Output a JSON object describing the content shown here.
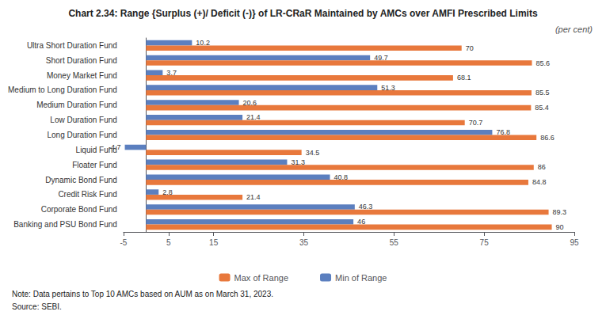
{
  "chart_data": {
    "type": "bar",
    "orientation": "horizontal",
    "title": "Chart 2.34: Range {Surplus (+)/ Deficit (-)} of LR-CRaR Maintained by AMCs over AMFI Prescribed Limits",
    "subtitle": "(per cent)",
    "categories": [
      "Banking and PSU Bond Fund",
      "Corporate Bond Fund",
      "Credit Risk Fund",
      "Dynamic Bond Fund",
      "Floater Fund",
      "Liquid Fund",
      "Long Duration Fund",
      "Low Duration Fund",
      "Medium Duration Fund",
      "Medium to Long Duration Fund",
      "Money Market Fund",
      "Short Duration Fund",
      "Ultra Short Duration Fund"
    ],
    "series": [
      {
        "name": "Max of Range",
        "color": "#E8783C",
        "values": [
          90.0,
          89.3,
          21.4,
          84.8,
          86.0,
          34.5,
          86.6,
          70.7,
          85.4,
          85.5,
          68.1,
          85.6,
          70.0
        ]
      },
      {
        "name": "Min of Range",
        "color": "#5B7FBF",
        "values": [
          46.0,
          46.3,
          2.8,
          40.8,
          31.3,
          -4.7,
          76.8,
          21.4,
          20.6,
          51.3,
          3.7,
          49.7,
          10.2
        ]
      }
    ],
    "xlim": [
      -5,
      95
    ],
    "xticks": [
      -5,
      5,
      15,
      35,
      55,
      75,
      95
    ],
    "data_labels": true,
    "grid": false,
    "legend": "bottom",
    "annotations": [
      "Note: Data pertains to Top 10 AMCs based on AUM as on March 31, 2023.",
      "Source: SEBI."
    ]
  }
}
